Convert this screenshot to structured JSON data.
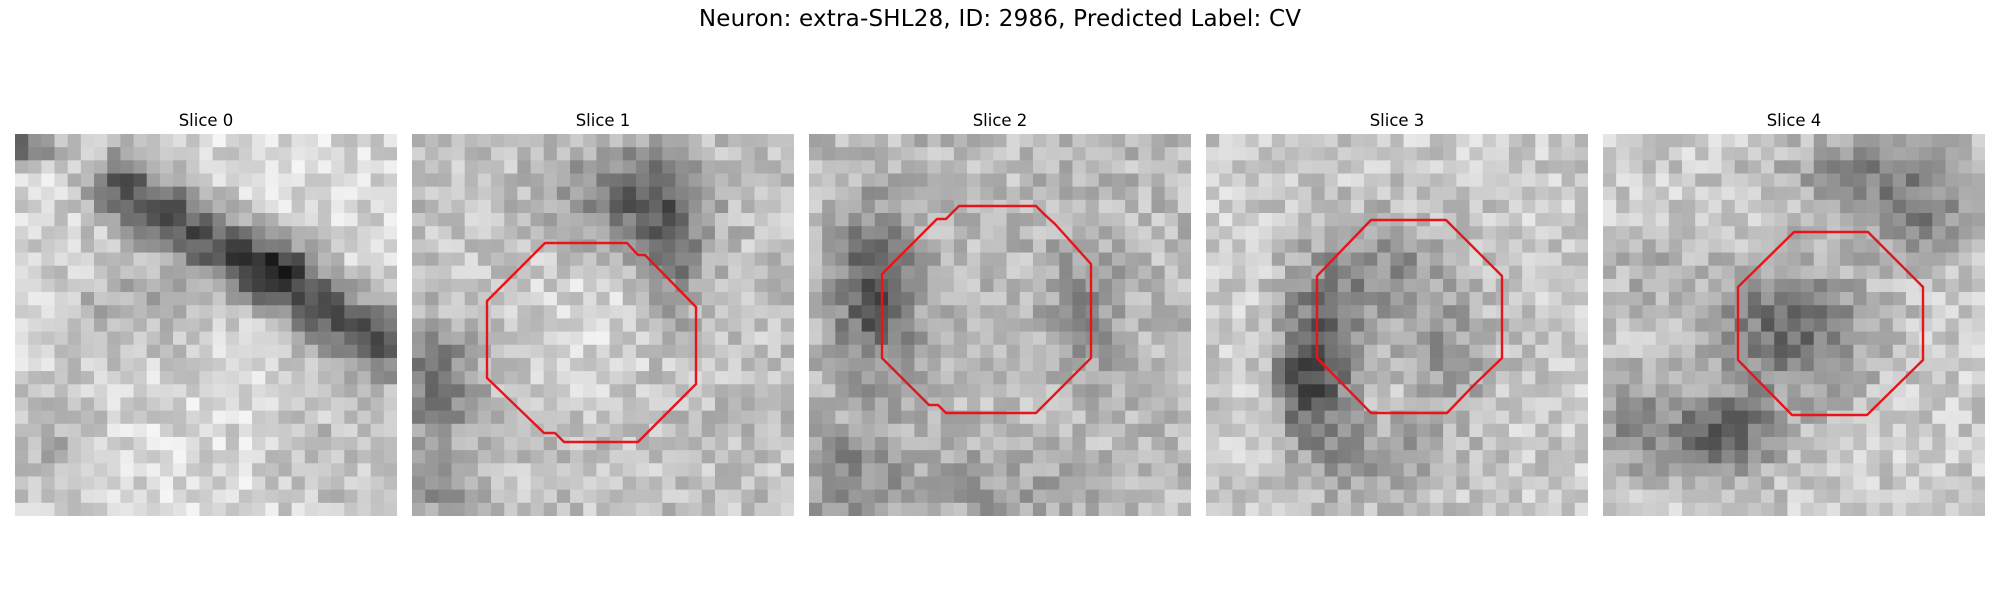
{
  "figure": {
    "title": "Neuron: extra-SHL28, ID: 2986, Predicted Label: CV"
  },
  "panels": [
    {
      "title": "Slice 0",
      "has_contour": false
    },
    {
      "title": "Slice 1",
      "has_contour": true
    },
    {
      "title": "Slice 2",
      "has_contour": true
    },
    {
      "title": "Slice 3",
      "has_contour": true
    },
    {
      "title": "Slice 4",
      "has_contour": true
    }
  ],
  "colors": {
    "contour": "#e8141c",
    "background": "#ffffff"
  }
}
